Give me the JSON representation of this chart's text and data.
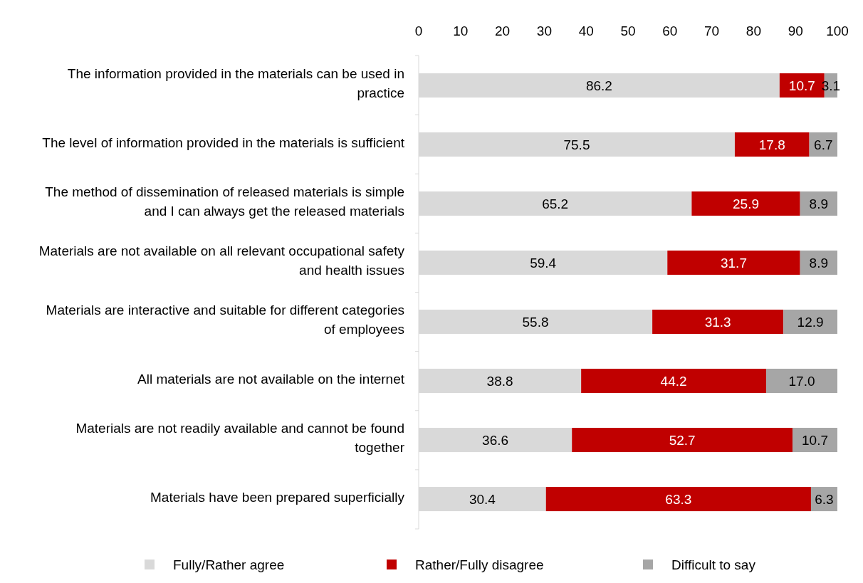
{
  "chart_data": {
    "type": "bar",
    "orientation": "horizontal",
    "stacked": true,
    "categories": [
      "The information provided in the materials can be used in practice",
      "The level of information provided in the materials is sufficient",
      "The method of dissemination of released materials is simple and I can always get the released materials",
      "Materials are not available on all relevant occupational safety and health issues",
      "Materials are interactive and suitable for different categories of employees",
      "All materials are not available on the internet",
      "Materials are not readily available and cannot be found together",
      "Materials have been prepared superficially"
    ],
    "series": [
      {
        "name": "Fully/Rather agree",
        "color": "#d9d9d9",
        "values": [
          86.2,
          75.5,
          65.2,
          59.4,
          55.8,
          38.8,
          36.6,
          30.4
        ],
        "value_labels": [
          "86.2",
          "75.5",
          "65.2",
          "59.4",
          "55.8",
          "38.8",
          "36.6",
          "30.4"
        ]
      },
      {
        "name": "Rather/Fully disagree",
        "color": "#c00000",
        "values": [
          10.7,
          17.8,
          25.9,
          31.7,
          31.3,
          44.2,
          52.7,
          63.3
        ],
        "value_labels": [
          "10.7",
          "17.8",
          "25.9",
          "31.7",
          "31.3",
          "44.2",
          "52.7",
          "63.3"
        ]
      },
      {
        "name": "Difficult to say",
        "color": "#a6a6a6",
        "values": [
          3.1,
          6.7,
          8.9,
          8.9,
          12.9,
          17.0,
          10.7,
          6.3
        ],
        "value_labels": [
          "3.1",
          "6.7",
          "8.9",
          "8.9",
          "12.9",
          "17.0",
          "10.7",
          "6.3"
        ]
      }
    ],
    "xlim": [
      0,
      100
    ],
    "xticks": [
      0,
      10,
      20,
      30,
      40,
      50,
      60,
      70,
      80,
      90,
      100
    ],
    "grid": false,
    "legend": "bottom"
  }
}
